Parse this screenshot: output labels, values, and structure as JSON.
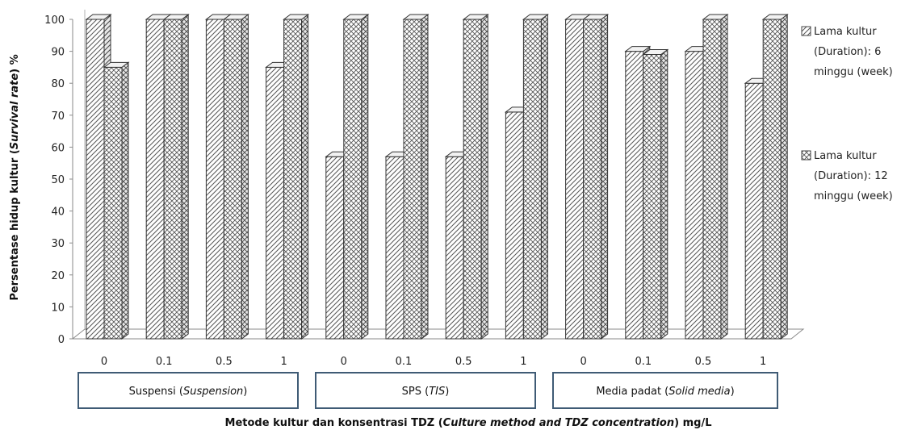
{
  "chart_data": {
    "type": "bar",
    "style": "3d-clustered-column",
    "title": "",
    "ylabel": {
      "before": "Persentase hidup kultur  (",
      "italic": "Survival rate",
      "after": ") %"
    },
    "xlabel": {
      "before": "Metode kultur dan konsentrasi TDZ (",
      "italic": "Culture method and TDZ concentration",
      "after": ") mg/L"
    },
    "ylim": [
      0,
      100
    ],
    "yticks": [
      "0",
      "10",
      "20",
      "30",
      "40",
      "50",
      "60",
      "70",
      "80",
      "90",
      "100"
    ],
    "categories": [
      "0",
      "0.1",
      "0.5",
      "1",
      "0",
      "0.1",
      "0.5",
      "1",
      "0",
      "0.1",
      "0.5",
      "1"
    ],
    "groups": [
      {
        "before": "Suspensi (",
        "italic": "Suspension",
        "after": ")"
      },
      {
        "before": "SPS (",
        "italic": "TIS",
        "after": ")"
      },
      {
        "before": "Media padat (",
        "italic": "Solid media",
        "after": ")"
      }
    ],
    "series": [
      {
        "name": "Lama kultur (Duration): 6 minggu (week)",
        "legend_lines": [
          "Lama kultur",
          "(Duration): 6",
          "minggu (week)"
        ],
        "pattern": "diagonal",
        "values": [
          100,
          100,
          100,
          85,
          57,
          57,
          57,
          71,
          100,
          90,
          90,
          80
        ]
      },
      {
        "name": "Lama kultur (Duration): 12 minggu (week)",
        "legend_lines": [
          "Lama kultur",
          "(Duration): 12",
          "minggu (week)"
        ],
        "pattern": "crosshatch",
        "values": [
          85,
          100,
          100,
          100,
          100,
          100,
          100,
          100,
          100,
          89,
          100,
          100
        ]
      }
    ],
    "grid": false,
    "legend_position": "right"
  }
}
